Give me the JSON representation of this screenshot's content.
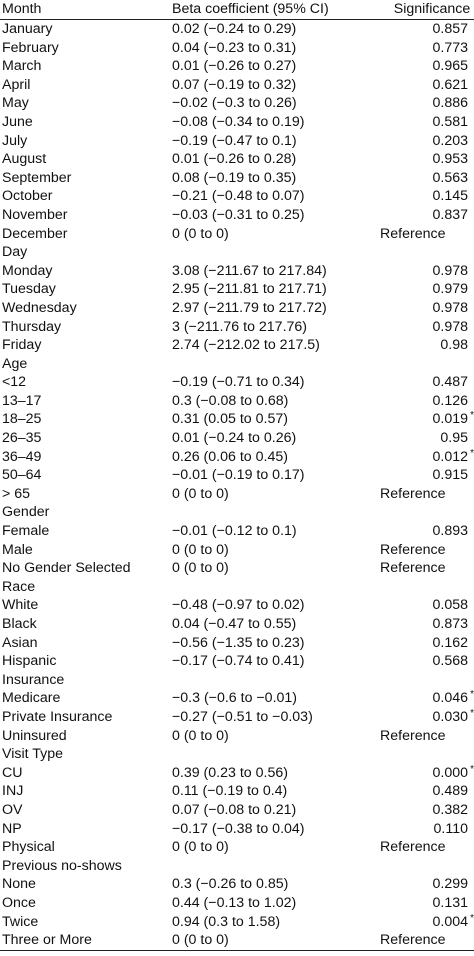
{
  "headers": [
    "Month",
    "Beta coefficient (95% CI)",
    "Significance"
  ],
  "rows": [
    {
      "label": "January",
      "beta": "0.02 (−0.24 to 0.29)",
      "sig": "0.857",
      "star": ""
    },
    {
      "label": "February",
      "beta": "0.04 (−0.23 to 0.31)",
      "sig": "0.773",
      "star": ""
    },
    {
      "label": "March",
      "beta": "0.01 (−0.26 to 0.27)",
      "sig": "0.965",
      "star": ""
    },
    {
      "label": "April",
      "beta": "0.07 (−0.19 to 0.32)",
      "sig": "0.621",
      "star": ""
    },
    {
      "label": "May",
      "beta": "−0.02 (−0.3 to 0.26)",
      "sig": "0.886",
      "star": ""
    },
    {
      "label": "June",
      "beta": "−0.08 (−0.34 to 0.19)",
      "sig": "0.581",
      "star": ""
    },
    {
      "label": "July",
      "beta": "−0.19 (−0.47 to 0.1)",
      "sig": "0.203",
      "star": ""
    },
    {
      "label": "August",
      "beta": "0.01 (−0.26 to 0.28)",
      "sig": "0.953",
      "star": ""
    },
    {
      "label": "September",
      "beta": "0.08 (−0.19 to 0.35)",
      "sig": "0.563",
      "star": ""
    },
    {
      "label": "October",
      "beta": "−0.21 (−0.48 to 0.07)",
      "sig": "0.145",
      "star": ""
    },
    {
      "label": "November",
      "beta": "−0.03 (−0.31 to 0.25)",
      "sig": "0.837",
      "star": ""
    },
    {
      "label": "December",
      "beta": "0 (0 to 0)",
      "sig": "Reference",
      "star": ""
    },
    {
      "label": "Day",
      "beta": "",
      "sig": "",
      "star": ""
    },
    {
      "label": "Monday",
      "beta": "3.08 (−211.67 to 217.84)",
      "sig": "0.978",
      "star": ""
    },
    {
      "label": "Tuesday",
      "beta": "2.95 (−211.81 to 217.71)",
      "sig": "0.979",
      "star": ""
    },
    {
      "label": "Wednesday",
      "beta": "2.97 (−211.79 to 217.72)",
      "sig": "0.978",
      "star": ""
    },
    {
      "label": "Thursday",
      "beta": "3 (−211.76 to 217.76)",
      "sig": "0.978",
      "star": ""
    },
    {
      "label": "Friday",
      "beta": "2.74 (−212.02 to 217.5)",
      "sig": "0.98",
      "star": ""
    },
    {
      "label": "Age",
      "beta": "",
      "sig": "",
      "star": ""
    },
    {
      "label": "<12",
      "beta": "−0.19 (−0.71 to 0.34)",
      "sig": "0.487",
      "star": ""
    },
    {
      "label": "13–17",
      "beta": "0.3 (−0.08 to 0.68)",
      "sig": "0.126",
      "star": ""
    },
    {
      "label": "18–25",
      "beta": "0.31 (0.05 to 0.57)",
      "sig": "0.019",
      "star": "*"
    },
    {
      "label": "26–35",
      "beta": "0.01 (−0.24 to 0.26)",
      "sig": "0.95",
      "star": ""
    },
    {
      "label": "36–49",
      "beta": "0.26 (0.06 to 0.45)",
      "sig": "0.012",
      "star": "*"
    },
    {
      "label": "50–64",
      "beta": "−0.01 (−0.19 to 0.17)",
      "sig": "0.915",
      "star": ""
    },
    {
      "label": "> 65",
      "beta": "0 (0 to 0)",
      "sig": "Reference",
      "star": ""
    },
    {
      "label": "Gender",
      "beta": "",
      "sig": "",
      "star": ""
    },
    {
      "label": "Female",
      "beta": "−0.01 (−0.12 to 0.1)",
      "sig": "0.893",
      "star": ""
    },
    {
      "label": "Male",
      "beta": "0 (0 to 0)",
      "sig": "Reference",
      "star": ""
    },
    {
      "label": "No Gender Selected",
      "beta": "0 (0 to 0)",
      "sig": "Reference",
      "star": ""
    },
    {
      "label": "Race",
      "beta": "",
      "sig": "",
      "star": ""
    },
    {
      "label": "White",
      "beta": "−0.48 (−0.97 to 0.02)",
      "sig": "0.058",
      "star": ""
    },
    {
      "label": "Black",
      "beta": "0.04 (−0.47 to 0.55)",
      "sig": "0.873",
      "star": ""
    },
    {
      "label": "Asian",
      "beta": "−0.56 (−1.35 to 0.23)",
      "sig": "0.162",
      "star": ""
    },
    {
      "label": "Hispanic",
      "beta": "−0.17 (−0.74 to 0.41)",
      "sig": "0.568",
      "star": ""
    },
    {
      "label": "Insurance",
      "beta": "",
      "sig": "",
      "star": ""
    },
    {
      "label": "Medicare",
      "beta": "−0.3 (−0.6 to −0.01)",
      "sig": "0.046",
      "star": "*"
    },
    {
      "label": "Private Insurance",
      "beta": "−0.27 (−0.51 to −0.03)",
      "sig": "0.030",
      "star": "*"
    },
    {
      "label": "Uninsured",
      "beta": "0 (0 to 0)",
      "sig": "Reference",
      "star": ""
    },
    {
      "label": "Visit Type",
      "beta": "",
      "sig": "",
      "star": ""
    },
    {
      "label": "CU",
      "beta": "0.39 (0.23 to 0.56)",
      "sig": "0.000",
      "star": "*"
    },
    {
      "label": "INJ",
      "beta": "0.11 (−0.19 to 0.4)",
      "sig": "0.489",
      "star": ""
    },
    {
      "label": "OV",
      "beta": "0.07 (−0.08 to 0.21)",
      "sig": "0.382",
      "star": ""
    },
    {
      "label": "NP",
      "beta": "−0.17 (−0.38 to 0.04)",
      "sig": "0.110",
      "star": ""
    },
    {
      "label": "Physical",
      "beta": "0 (0 to 0)",
      "sig": "Reference",
      "star": ""
    },
    {
      "label": "Previous no-shows",
      "beta": "",
      "sig": "",
      "star": ""
    },
    {
      "label": "None",
      "beta": "0.3 (−0.26 to 0.85)",
      "sig": "0.299",
      "star": ""
    },
    {
      "label": "Once",
      "beta": "0.44 (−0.13 to 1.02)",
      "sig": "0.131",
      "star": ""
    },
    {
      "label": "Twice",
      "beta": "0.94 (0.3 to 1.58)",
      "sig": "0.004",
      "star": "*"
    },
    {
      "label": "Three or More",
      "beta": "0 (0 to 0)",
      "sig": "Reference",
      "star": ""
    }
  ]
}
